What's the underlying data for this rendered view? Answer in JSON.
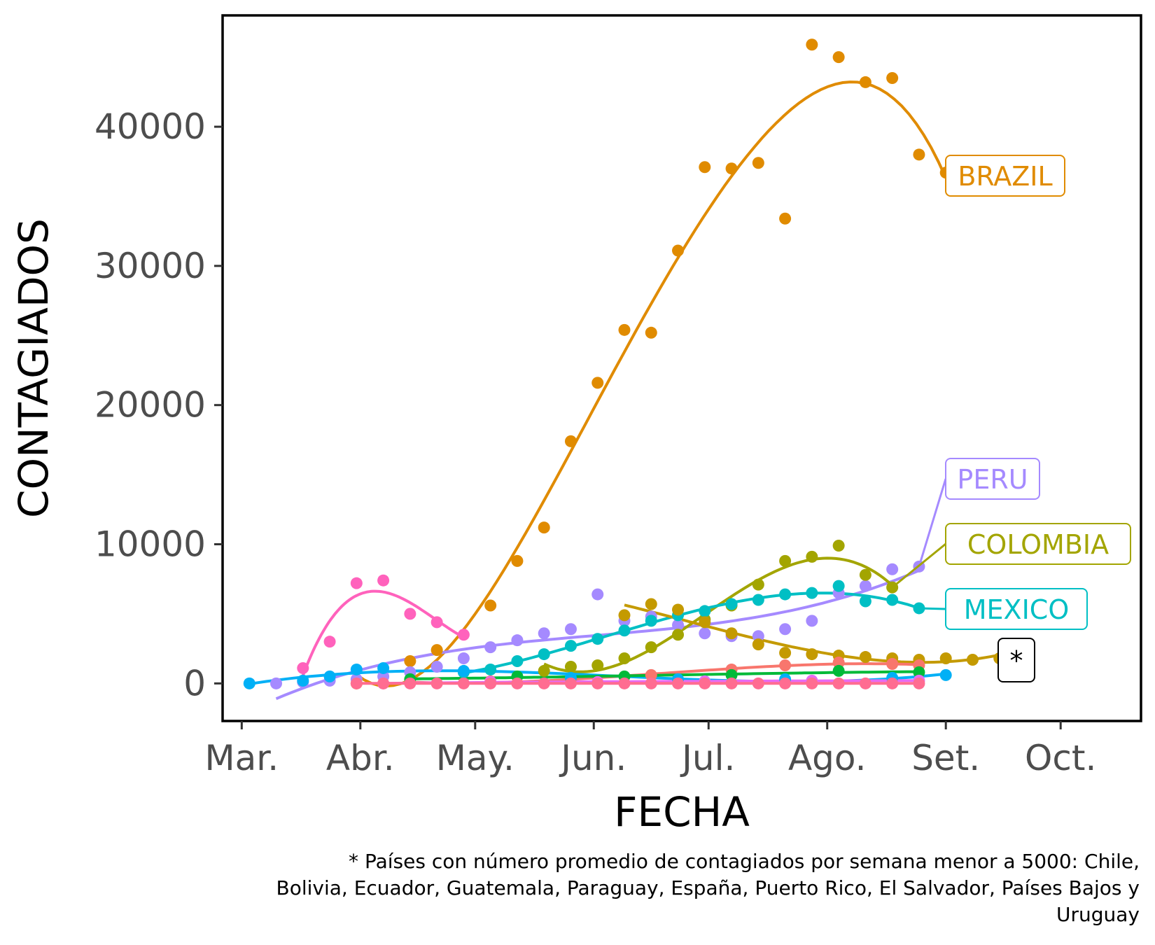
{
  "chart_data": {
    "type": "scatter",
    "xlabel": "FECHA",
    "ylabel": "CONTAGIADOS",
    "x_unit": "semana (fecha)",
    "xlim": [
      "2020-02-25",
      "2020-10-22"
    ],
    "ylim": [
      -2700,
      48000
    ],
    "x_ticks": [
      {
        "date": "2020-03-01",
        "label": "Mar."
      },
      {
        "date": "2020-04-01",
        "label": "Abr."
      },
      {
        "date": "2020-05-01",
        "label": "May."
      },
      {
        "date": "2020-06-01",
        "label": "Jun."
      },
      {
        "date": "2020-07-01",
        "label": "Jul."
      },
      {
        "date": "2020-08-01",
        "label": "Ago."
      },
      {
        "date": "2020-09-01",
        "label": "Set."
      },
      {
        "date": "2020-10-01",
        "label": "Oct."
      }
    ],
    "y_ticks": [
      {
        "value": 0,
        "label": "0"
      },
      {
        "value": 10000,
        "label": "10000"
      },
      {
        "value": 20000,
        "label": "20000"
      },
      {
        "value": 30000,
        "label": "30000"
      },
      {
        "value": 40000,
        "label": "40000"
      }
    ],
    "grid": false,
    "legend": "none",
    "labels": [
      {
        "text": "BRAZIL",
        "color": "#E08B00",
        "series": "Brazil"
      },
      {
        "text": "PERU",
        "color": "#A58AFF",
        "series": "Peru"
      },
      {
        "text": "COLOMBIA",
        "color": "#A3A500",
        "series": "Colombia"
      },
      {
        "text": "MEXICO",
        "color": "#00BFC4",
        "series": "Mexico"
      },
      {
        "text": "*",
        "color": "#000000",
        "series": ""
      }
    ],
    "caption": [
      "* Países con número promedio de contagiados por semana menor a 5000: Chile,",
      "Bolivia, Ecuador, Guatemala, Paraguay, España, Puerto Rico, El Salvador, Países Bajos y",
      "Uruguay"
    ],
    "series": [
      {
        "color": "#E08B00",
        "smooth": true,
        "points": [
          {
            "x": "2020-03-31",
            "y": 0
          },
          {
            "x": "2020-04-14",
            "y": 1600
          },
          {
            "x": "2020-04-21",
            "y": 2400
          },
          {
            "x": "2020-05-05",
            "y": 5600
          },
          {
            "x": "2020-05-12",
            "y": 8800
          },
          {
            "x": "2020-05-19",
            "y": 11200
          },
          {
            "x": "2020-05-26",
            "y": 17400
          },
          {
            "x": "2020-06-02",
            "y": 21600
          },
          {
            "x": "2020-06-09",
            "y": 25400
          },
          {
            "x": "2020-06-16",
            "y": 25200
          },
          {
            "x": "2020-06-23",
            "y": 31100
          },
          {
            "x": "2020-06-30",
            "y": 37100
          },
          {
            "x": "2020-07-07",
            "y": 37000
          },
          {
            "x": "2020-07-14",
            "y": 37400
          },
          {
            "x": "2020-07-21",
            "y": 33400
          },
          {
            "x": "2020-07-28",
            "y": 45900
          },
          {
            "x": "2020-08-04",
            "y": 45000
          },
          {
            "x": "2020-08-11",
            "y": 43200
          },
          {
            "x": "2020-08-18",
            "y": 43500
          },
          {
            "x": "2020-08-25",
            "y": 38000
          },
          {
            "x": "2020-09-01",
            "y": 36700
          }
        ]
      },
      {
        "color": "#A58AFF",
        "smooth": true,
        "points": [
          {
            "x": "2020-03-10",
            "y": 0
          },
          {
            "x": "2020-03-17",
            "y": 100
          },
          {
            "x": "2020-03-24",
            "y": 200
          },
          {
            "x": "2020-03-31",
            "y": 300
          },
          {
            "x": "2020-04-07",
            "y": 500
          },
          {
            "x": "2020-04-14",
            "y": 800
          },
          {
            "x": "2020-04-21",
            "y": 1200
          },
          {
            "x": "2020-04-28",
            "y": 1800
          },
          {
            "x": "2020-05-05",
            "y": 2600
          },
          {
            "x": "2020-05-12",
            "y": 3100
          },
          {
            "x": "2020-05-19",
            "y": 3600
          },
          {
            "x": "2020-05-26",
            "y": 3900
          },
          {
            "x": "2020-06-02",
            "y": 6400
          },
          {
            "x": "2020-06-09",
            "y": 4500
          },
          {
            "x": "2020-06-16",
            "y": 4800
          },
          {
            "x": "2020-06-23",
            "y": 4200
          },
          {
            "x": "2020-06-30",
            "y": 3600
          },
          {
            "x": "2020-07-07",
            "y": 3400
          },
          {
            "x": "2020-07-14",
            "y": 3400
          },
          {
            "x": "2020-07-21",
            "y": 3900
          },
          {
            "x": "2020-07-28",
            "y": 4500
          },
          {
            "x": "2020-08-04",
            "y": 6500
          },
          {
            "x": "2020-08-11",
            "y": 7000
          },
          {
            "x": "2020-08-18",
            "y": 8200
          },
          {
            "x": "2020-08-25",
            "y": 8400
          }
        ]
      },
      {
        "color": "#A3A500",
        "smooth": true,
        "points": [
          {
            "x": "2020-05-19",
            "y": 900
          },
          {
            "x": "2020-05-26",
            "y": 1200
          },
          {
            "x": "2020-06-02",
            "y": 1300
          },
          {
            "x": "2020-06-09",
            "y": 1800
          },
          {
            "x": "2020-06-16",
            "y": 2600
          },
          {
            "x": "2020-06-23",
            "y": 3500
          },
          {
            "x": "2020-06-30",
            "y": 4600
          },
          {
            "x": "2020-07-07",
            "y": 5600
          },
          {
            "x": "2020-07-14",
            "y": 7100
          },
          {
            "x": "2020-07-21",
            "y": 8800
          },
          {
            "x": "2020-07-28",
            "y": 9100
          },
          {
            "x": "2020-08-04",
            "y": 9900
          },
          {
            "x": "2020-08-11",
            "y": 7800
          },
          {
            "x": "2020-08-18",
            "y": 6900
          }
        ]
      },
      {
        "color": "#00BFC4",
        "smooth": true,
        "points": [
          {
            "x": "2020-04-28",
            "y": 800
          },
          {
            "x": "2020-05-05",
            "y": 1000
          },
          {
            "x": "2020-05-12",
            "y": 1600
          },
          {
            "x": "2020-05-19",
            "y": 2100
          },
          {
            "x": "2020-05-26",
            "y": 2700
          },
          {
            "x": "2020-06-02",
            "y": 3200
          },
          {
            "x": "2020-06-09",
            "y": 3800
          },
          {
            "x": "2020-06-16",
            "y": 4500
          },
          {
            "x": "2020-06-23",
            "y": 4900
          },
          {
            "x": "2020-06-30",
            "y": 5200
          },
          {
            "x": "2020-07-07",
            "y": 5700
          },
          {
            "x": "2020-07-14",
            "y": 6000
          },
          {
            "x": "2020-07-21",
            "y": 6400
          },
          {
            "x": "2020-07-28",
            "y": 6500
          },
          {
            "x": "2020-08-04",
            "y": 7000
          },
          {
            "x": "2020-08-11",
            "y": 5900
          },
          {
            "x": "2020-08-18",
            "y": 6000
          },
          {
            "x": "2020-08-25",
            "y": 5400
          }
        ]
      },
      {
        "color": "#FF62BC",
        "smooth": true,
        "points": [
          {
            "x": "2020-03-17",
            "y": 1100
          },
          {
            "x": "2020-03-24",
            "y": 3000
          },
          {
            "x": "2020-03-31",
            "y": 7200
          },
          {
            "x": "2020-04-07",
            "y": 7400
          },
          {
            "x": "2020-04-14",
            "y": 5000
          },
          {
            "x": "2020-04-21",
            "y": 4400
          },
          {
            "x": "2020-04-28",
            "y": 3500
          }
        ]
      },
      {
        "color": "#C49A00",
        "smooth": true,
        "points": [
          {
            "x": "2020-06-09",
            "y": 4900
          },
          {
            "x": "2020-06-16",
            "y": 5700
          },
          {
            "x": "2020-06-23",
            "y": 5300
          },
          {
            "x": "2020-06-30",
            "y": 4400
          },
          {
            "x": "2020-07-07",
            "y": 3600
          },
          {
            "x": "2020-07-14",
            "y": 2800
          },
          {
            "x": "2020-07-21",
            "y": 2200
          },
          {
            "x": "2020-07-28",
            "y": 2100
          },
          {
            "x": "2020-08-04",
            "y": 2000
          },
          {
            "x": "2020-08-11",
            "y": 1900
          },
          {
            "x": "2020-08-18",
            "y": 1800
          },
          {
            "x": "2020-08-25",
            "y": 1700
          },
          {
            "x": "2020-09-01",
            "y": 1800
          },
          {
            "x": "2020-09-08",
            "y": 1700
          },
          {
            "x": "2020-09-15",
            "y": 1800
          }
        ]
      },
      {
        "color": "#F8766D",
        "smooth": true,
        "points": [
          {
            "x": "2020-04-14",
            "y": 50
          },
          {
            "x": "2020-05-05",
            "y": 150
          },
          {
            "x": "2020-05-26",
            "y": 300
          },
          {
            "x": "2020-06-16",
            "y": 600
          },
          {
            "x": "2020-07-07",
            "y": 1000
          },
          {
            "x": "2020-07-21",
            "y": 1300
          },
          {
            "x": "2020-08-04",
            "y": 1500
          },
          {
            "x": "2020-08-18",
            "y": 1400
          },
          {
            "x": "2020-08-25",
            "y": 1300
          }
        ]
      },
      {
        "color": "#00B0F6",
        "smooth": true,
        "points": [
          {
            "x": "2020-03-03",
            "y": 0
          },
          {
            "x": "2020-03-17",
            "y": 200
          },
          {
            "x": "2020-03-24",
            "y": 500
          },
          {
            "x": "2020-03-31",
            "y": 1000
          },
          {
            "x": "2020-04-07",
            "y": 1100
          },
          {
            "x": "2020-04-28",
            "y": 900
          },
          {
            "x": "2020-05-26",
            "y": 400
          },
          {
            "x": "2020-06-23",
            "y": 300
          },
          {
            "x": "2020-07-21",
            "y": 300
          },
          {
            "x": "2020-08-18",
            "y": 400
          },
          {
            "x": "2020-09-01",
            "y": 600
          }
        ]
      },
      {
        "color": "#00BA38",
        "smooth": true,
        "points": [
          {
            "x": "2020-04-14",
            "y": 300
          },
          {
            "x": "2020-05-12",
            "y": 500
          },
          {
            "x": "2020-06-09",
            "y": 500
          },
          {
            "x": "2020-07-07",
            "y": 600
          },
          {
            "x": "2020-08-04",
            "y": 900
          },
          {
            "x": "2020-08-25",
            "y": 800
          }
        ]
      },
      {
        "color": "#E76BF3",
        "smooth": true,
        "points": [
          {
            "x": "2020-04-07",
            "y": 0
          },
          {
            "x": "2020-05-05",
            "y": 100
          },
          {
            "x": "2020-06-02",
            "y": 100
          },
          {
            "x": "2020-06-30",
            "y": 150
          },
          {
            "x": "2020-07-28",
            "y": 200
          },
          {
            "x": "2020-08-25",
            "y": 200
          }
        ]
      },
      {
        "color": "#FF6C91",
        "smooth": true,
        "points": [
          {
            "x": "2020-03-31",
            "y": 0
          },
          {
            "x": "2020-04-07",
            "y": 0
          },
          {
            "x": "2020-04-14",
            "y": 0
          },
          {
            "x": "2020-04-21",
            "y": 0
          },
          {
            "x": "2020-04-28",
            "y": 0
          },
          {
            "x": "2020-05-05",
            "y": 0
          },
          {
            "x": "2020-05-12",
            "y": 0
          },
          {
            "x": "2020-05-19",
            "y": 0
          },
          {
            "x": "2020-05-26",
            "y": 0
          },
          {
            "x": "2020-06-02",
            "y": 0
          },
          {
            "x": "2020-06-09",
            "y": 0
          },
          {
            "x": "2020-06-16",
            "y": 0
          },
          {
            "x": "2020-06-23",
            "y": 0
          },
          {
            "x": "2020-06-30",
            "y": 0
          },
          {
            "x": "2020-07-07",
            "y": 0
          },
          {
            "x": "2020-07-14",
            "y": 0
          },
          {
            "x": "2020-07-21",
            "y": 0
          },
          {
            "x": "2020-07-28",
            "y": 0
          },
          {
            "x": "2020-08-04",
            "y": 0
          },
          {
            "x": "2020-08-11",
            "y": 0
          },
          {
            "x": "2020-08-18",
            "y": 0
          },
          {
            "x": "2020-08-25",
            "y": 0
          }
        ]
      }
    ]
  }
}
